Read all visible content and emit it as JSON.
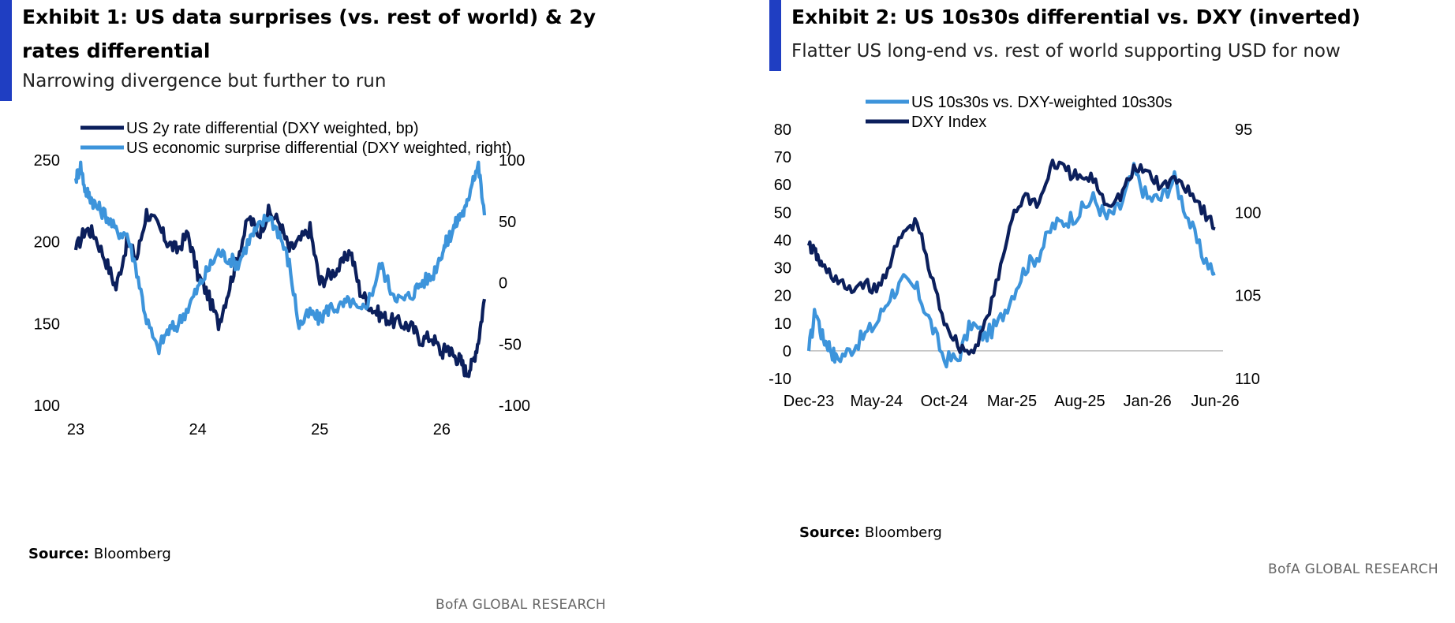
{
  "colors": {
    "navy": "#0b1f5c",
    "light_blue": "#3d94db",
    "accent_bar": "#1f3ec2",
    "zero_line": "#bdbdbd"
  },
  "exhibits": [
    {
      "title": "Exhibit 1: US data surprises (vs. rest of world) & 2y rates differential",
      "subtitle": "Narrowing divergence but further to run",
      "source_label": "Source:",
      "source_text": "Bloomberg",
      "brand": "BofA GLOBAL RESEARCH"
    },
    {
      "title": "Exhibit 2: US 10s30s differential vs. DXY (inverted)",
      "subtitle": "Flatter US long-end vs. rest of world supporting USD for now",
      "source_label": "Source:",
      "source_text": "Bloomberg",
      "brand": "BofA GLOBAL RESEARCH"
    }
  ],
  "chart_data": [
    {
      "type": "line",
      "title": "Exhibit 1: US data surprises (vs. rest of world) & 2y rates differential",
      "x_ticks": [
        "23",
        "24",
        "25",
        "26"
      ],
      "xlim": [
        2023.0,
        2026.35
      ],
      "left_axis": {
        "ylim": [
          100,
          250
        ],
        "ticks": [
          "100",
          "150",
          "200",
          "250"
        ]
      },
      "right_axis": {
        "ylim": [
          -100,
          100
        ],
        "ticks": [
          "-100",
          "-50",
          "0",
          "50",
          "100"
        ]
      },
      "legend_position": "top",
      "series": [
        {
          "name": "US 2y rate differential (DXY weighted, bp)",
          "axis": "left",
          "color": "#0b1f5c",
          "x": [
            2023.0,
            2023.08,
            2023.15,
            2023.25,
            2023.33,
            2023.42,
            2023.5,
            2023.58,
            2023.67,
            2023.75,
            2023.83,
            2023.92,
            2024.0,
            2024.08,
            2024.17,
            2024.25,
            2024.33,
            2024.42,
            2024.5,
            2024.58,
            2024.67,
            2024.75,
            2024.83,
            2024.92,
            2025.0,
            2025.08,
            2025.17,
            2025.25,
            2025.33,
            2025.42,
            2025.5,
            2025.58,
            2025.67,
            2025.75,
            2025.83,
            2025.92,
            2026.0,
            2026.05,
            2026.1,
            2026.15,
            2026.2,
            2026.25,
            2026.3,
            2026.35
          ],
          "y": [
            195,
            208,
            205,
            188,
            172,
            200,
            190,
            218,
            210,
            200,
            195,
            205,
            180,
            168,
            150,
            170,
            192,
            215,
            205,
            218,
            212,
            195,
            200,
            208,
            175,
            180,
            185,
            195,
            170,
            160,
            155,
            152,
            150,
            148,
            140,
            142,
            132,
            136,
            130,
            128,
            120,
            125,
            140,
            165
          ]
        },
        {
          "name": "US economic surprise differential (DXY weighted, right)",
          "axis": "right",
          "color": "#3d94db",
          "x": [
            2023.0,
            2023.04,
            2023.08,
            2023.12,
            2023.17,
            2023.25,
            2023.33,
            2023.42,
            2023.5,
            2023.58,
            2023.67,
            2023.75,
            2023.83,
            2023.92,
            2024.0,
            2024.08,
            2024.17,
            2024.25,
            2024.33,
            2024.42,
            2024.5,
            2024.58,
            2024.67,
            2024.75,
            2024.83,
            2024.92,
            2025.0,
            2025.08,
            2025.17,
            2025.25,
            2025.33,
            2025.42,
            2025.5,
            2025.58,
            2025.67,
            2025.75,
            2025.83,
            2025.92,
            2026.0,
            2026.05,
            2026.1,
            2026.15,
            2026.2,
            2026.25,
            2026.3,
            2026.35
          ],
          "y": [
            85,
            95,
            75,
            70,
            62,
            55,
            42,
            40,
            10,
            -30,
            -55,
            -40,
            -35,
            -20,
            -5,
            10,
            25,
            20,
            15,
            35,
            45,
            55,
            40,
            15,
            -35,
            -25,
            -30,
            -20,
            -20,
            -15,
            -25,
            -10,
            15,
            -5,
            -15,
            -10,
            0,
            5,
            25,
            35,
            45,
            55,
            60,
            85,
            95,
            55
          ]
        }
      ]
    },
    {
      "type": "line",
      "title": "Exhibit 2: US 10s30s differential vs. DXY (inverted)",
      "x_ticks": [
        "Dec-23",
        "May-24",
        "Oct-24",
        "Mar-25",
        "Aug-25",
        "Jan-26",
        "Jun-26"
      ],
      "xlim": [
        0,
        30
      ],
      "left_axis": {
        "ylim": [
          -10,
          80
        ],
        "ticks": [
          "-10",
          "0",
          "10",
          "20",
          "30",
          "40",
          "50",
          "60",
          "70",
          "80"
        ]
      },
      "right_axis": {
        "ylim": [
          110,
          95
        ],
        "inverted": true,
        "ticks": [
          "95",
          "100",
          "105",
          "110"
        ]
      },
      "legend_position": "top",
      "series": [
        {
          "name": "US 10s30s vs. DXY-weighted 10s30s",
          "axis": "left",
          "color": "#3d94db",
          "x": [
            0,
            0.5,
            1,
            1.5,
            2,
            3,
            4,
            5,
            6,
            7,
            8,
            9,
            10,
            11,
            12,
            13,
            14,
            15,
            16,
            17,
            18,
            19,
            20,
            21,
            22,
            23,
            24,
            25,
            26,
            27,
            28,
            29,
            30
          ],
          "y": [
            0,
            15,
            5,
            2,
            -3,
            0,
            5,
            10,
            20,
            25,
            22,
            10,
            -3,
            -3,
            10,
            5,
            10,
            20,
            30,
            35,
            45,
            47,
            50,
            55,
            48,
            52,
            65,
            55,
            55,
            62,
            48,
            35,
            28
          ]
        },
        {
          "name": "DXY Index",
          "axis": "right",
          "color": "#0b1f5c",
          "x": [
            0,
            0.5,
            1,
            2,
            3,
            4,
            5,
            6,
            7,
            8,
            9,
            10,
            11,
            12,
            13,
            14,
            15,
            16,
            17,
            18,
            19,
            20,
            21,
            22,
            23,
            24,
            25,
            26,
            27,
            28,
            29,
            30
          ],
          "y": [
            102,
            102.5,
            103.3,
            104,
            104.8,
            104.2,
            104.8,
            103,
            101.2,
            100.6,
            103.8,
            106.5,
            108,
            108.5,
            106.8,
            104,
            100.2,
            99,
            99.5,
            97,
            97.5,
            98,
            98,
            99.5,
            99,
            97.5,
            97.5,
            98.5,
            98,
            98.5,
            99.7,
            101
          ]
        }
      ]
    }
  ]
}
